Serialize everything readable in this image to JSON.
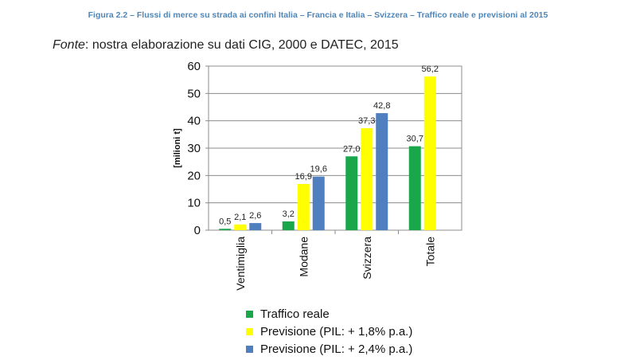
{
  "figure_title": "Figura 2.2 – Flussi di merce su strada ai confini Italia – Francia e Italia – Svizzera – Traffico reale e previsioni al 2015",
  "source": {
    "italic": "Fonte",
    "text": ": nostra elaborazione su dati CIG, 2000 e DATEC, 2015"
  },
  "colors": {
    "series": [
      "#1aa64a",
      "#ffff00",
      "#4f7fbf"
    ]
  },
  "chart_data": {
    "type": "bar",
    "ylabel": "[milioni t]",
    "ylim": [
      0,
      60
    ],
    "yticks": [
      0,
      10,
      20,
      30,
      40,
      50,
      60
    ],
    "grid": true,
    "legend_position": "bottom",
    "categories": [
      "Ventimiglia",
      "Modane",
      "Svizzera",
      "Totale"
    ],
    "series": [
      {
        "name": "Traffico reale",
        "values": [
          0.5,
          3.2,
          27.0,
          30.7
        ],
        "labels": [
          "0,5",
          "3,2",
          "27,0",
          "30,7"
        ]
      },
      {
        "name": "Previsione (PIL: + 1,8% p.a.)",
        "values": [
          2.1,
          16.9,
          37.3,
          56.2
        ],
        "labels": [
          "2,1",
          "16,9",
          "37,3",
          "56,2"
        ]
      },
      {
        "name": "Previsione (PIL: + 2,4% p.a.)",
        "values": [
          2.6,
          19.6,
          42.8,
          null
        ],
        "labels": [
          "2,6",
          "19,6",
          "42,8",
          null
        ]
      }
    ]
  }
}
